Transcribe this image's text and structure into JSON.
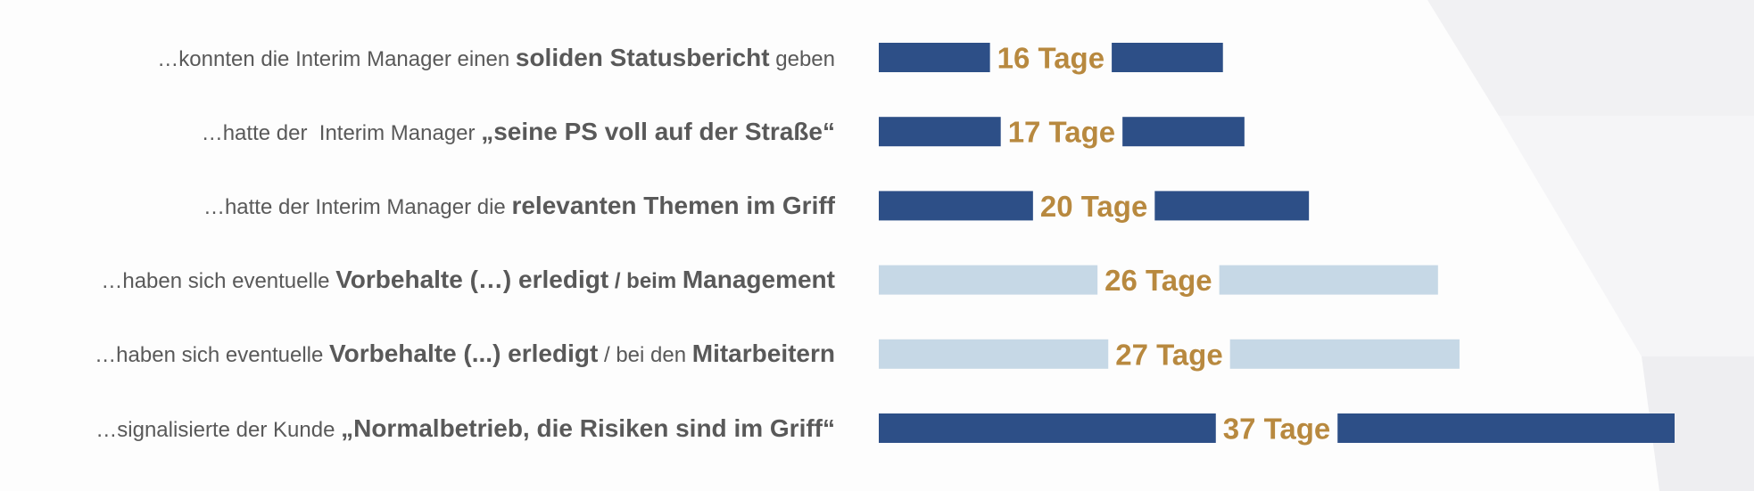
{
  "colors": {
    "dark_bar": "#2d4f87",
    "light_bar": "#c6d8e6",
    "value_text": "#b8893f",
    "label_text": "#595959",
    "label_gap_bg": "#fdfdfd"
  },
  "chart_data": {
    "type": "bar",
    "orientation": "horizontal",
    "unit": "Tage",
    "categories": [
      [
        {
          "text": "…konnten die Interim Manager einen ",
          "style": "normal"
        },
        {
          "text": "soliden Statusbericht",
          "style": "bold"
        },
        {
          "text": " geben",
          "style": "normal"
        }
      ],
      [
        {
          "text": "…hatte der  Interim Manager ",
          "style": "normal"
        },
        {
          "text": "„seine PS voll auf der Straße“",
          "style": "bold"
        }
      ],
      [
        {
          "text": "…hatte der Interim Manager die ",
          "style": "normal"
        },
        {
          "text": "relevanten Themen im Griff",
          "style": "bold"
        }
      ],
      [
        {
          "text": "…haben sich eventuelle ",
          "style": "normal"
        },
        {
          "text": "Vorbehalte (…) erledigt",
          "style": "bold"
        },
        {
          "text": " / beim ",
          "style": "bold-small"
        },
        {
          "text": "Management",
          "style": "bold"
        }
      ],
      [
        {
          "text": "…haben sich eventuelle ",
          "style": "normal"
        },
        {
          "text": "Vorbehalte (...) erledigt",
          "style": "bold"
        },
        {
          "text": " / bei den ",
          "style": "normal"
        },
        {
          "text": "Mitarbeitern",
          "style": "bold"
        }
      ],
      [
        {
          "text": "…signalisierte der Kunde ",
          "style": "normal"
        },
        {
          "text": "„Normalbetrieb, die Risiken sind im Griff“",
          "style": "bold"
        }
      ]
    ],
    "values": [
      16,
      17,
      20,
      26,
      27,
      37
    ],
    "value_labels": [
      "16 Tage",
      "17 Tage",
      "20 Tage",
      "26 Tage",
      "27 Tage",
      "37 Tage"
    ],
    "bar_colors": [
      "dark",
      "dark",
      "dark",
      "light",
      "light",
      "dark"
    ],
    "xlim": [
      0,
      37
    ],
    "grid": false,
    "legend": "none"
  }
}
